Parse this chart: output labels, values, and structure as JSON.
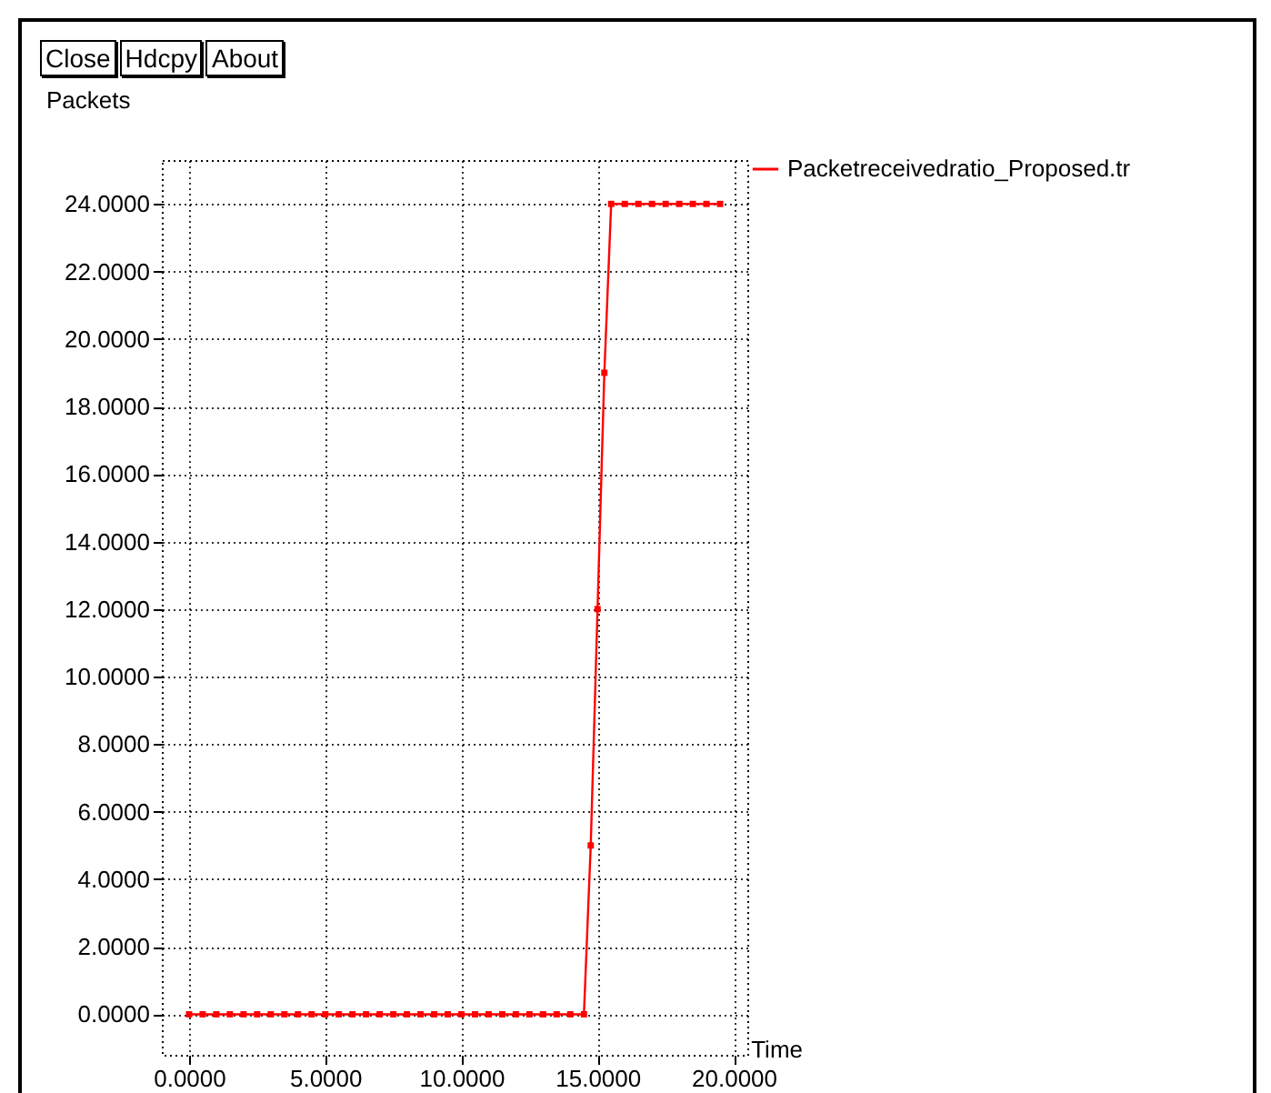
{
  "chart_data": {
    "type": "line",
    "xlabel": "Time",
    "ylabel": "Packets",
    "annotations": [
      "Close",
      "Hdcpy",
      "About"
    ],
    "x": [
      0,
      0.5,
      1,
      1.5,
      2,
      2.5,
      3,
      3.5,
      4,
      4.5,
      5,
      5.5,
      6,
      6.5,
      7,
      7.5,
      8,
      8.5,
      9,
      9.5,
      10,
      10.5,
      11,
      11.5,
      12,
      12.5,
      13,
      13.5,
      14,
      14.5,
      14.75,
      15,
      15.25,
      15.5,
      16,
      16.5,
      17,
      17.5,
      18,
      18.5,
      19,
      19.5
    ],
    "series": [
      {
        "name": "Packetreceivedratio_Proposed.tr",
        "color": "#ff0000",
        "values": [
          0,
          0,
          0,
          0,
          0,
          0,
          0,
          0,
          0,
          0,
          0,
          0,
          0,
          0,
          0,
          0,
          0,
          0,
          0,
          0,
          0,
          0,
          0,
          0,
          0,
          0,
          0,
          0,
          0,
          0,
          5,
          12,
          19,
          24,
          24,
          24,
          24,
          24,
          24,
          24,
          24,
          24
        ]
      }
    ],
    "xlim": [
      -1,
      20.5
    ],
    "ylim": [
      -1.2,
      25.3
    ],
    "xticks": [
      {
        "value": 0,
        "label": "0.0000"
      },
      {
        "value": 5,
        "label": "5.0000"
      },
      {
        "value": 10,
        "label": "10.0000"
      },
      {
        "value": 15,
        "label": "15.0000"
      },
      {
        "value": 20,
        "label": "20.0000"
      }
    ],
    "yticks": [
      {
        "value": 0,
        "label": "0.0000"
      },
      {
        "value": 2,
        "label": "2.0000"
      },
      {
        "value": 4,
        "label": "4.0000"
      },
      {
        "value": 6,
        "label": "6.0000"
      },
      {
        "value": 8,
        "label": "8.0000"
      },
      {
        "value": 10,
        "label": "10.0000"
      },
      {
        "value": 12,
        "label": "12.0000"
      },
      {
        "value": 14,
        "label": "14.0000"
      },
      {
        "value": 16,
        "label": "16.0000"
      },
      {
        "value": 18,
        "label": "18.0000"
      },
      {
        "value": 20,
        "label": "20.0000"
      },
      {
        "value": 22,
        "label": "22.0000"
      },
      {
        "value": 24,
        "label": "24.0000"
      }
    ],
    "grid": true,
    "legend": "top right",
    "marker": "square",
    "line_style": "solid"
  }
}
